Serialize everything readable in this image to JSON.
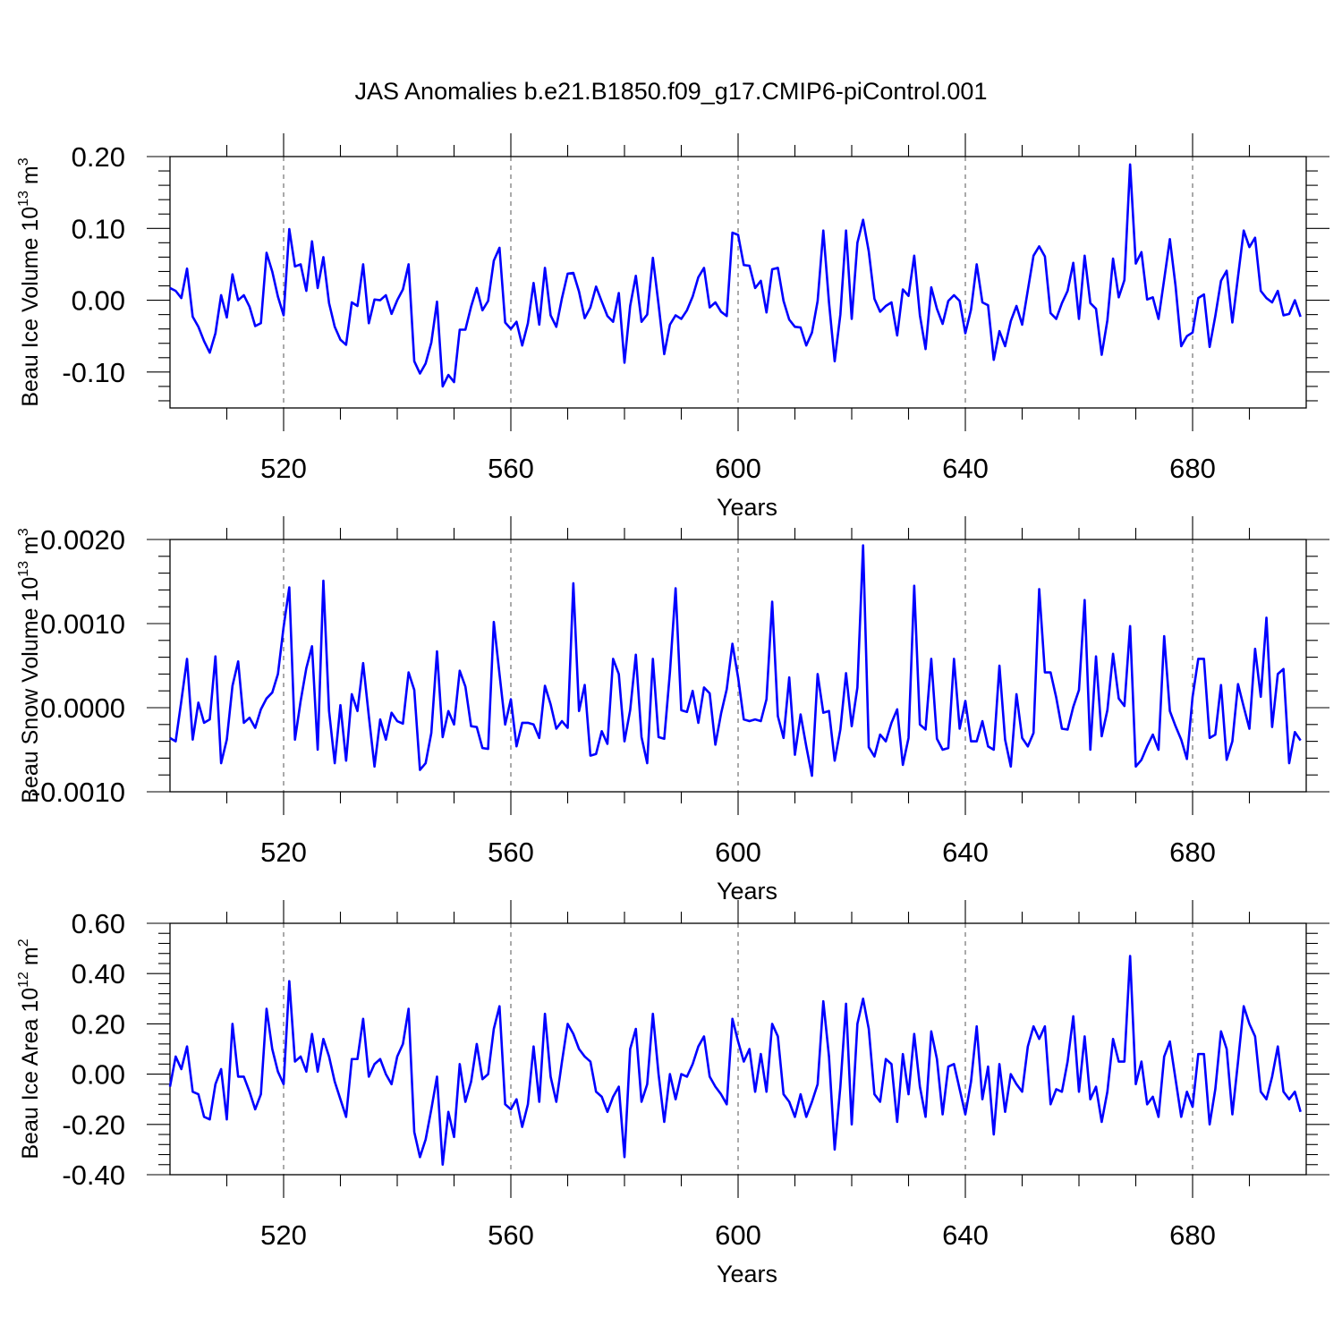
{
  "chart_data": {
    "title": "JAS Anomalies b.e21.B1850.f09_g17.CMIP6-piControl.001",
    "panels": [
      {
        "type": "line",
        "ylabel": "Beau Ice Volume 10",
        "ylabel_exp": "13",
        "ylabel_unit": " m",
        "ylabel_unit_exp": "3",
        "xlabel": "Years",
        "xlim": [
          500,
          700
        ],
        "ylim": [
          -0.15,
          0.2
        ],
        "yticks": [
          -0.1,
          0.0,
          0.1,
          0.2
        ],
        "ytick_labels": [
          "-0.10",
          "0.00",
          "0.10",
          "0.20"
        ],
        "xticks": [
          520,
          560,
          600,
          640,
          680
        ],
        "xtick_labels": [
          "520",
          "560",
          "600",
          "640",
          "680"
        ],
        "grid_x": [
          520,
          560,
          600,
          640,
          680
        ],
        "color": "#0000ff",
        "x_start": 500,
        "values": [
          0.017,
          0.013,
          0.003,
          0.044,
          -0.023,
          -0.037,
          -0.057,
          -0.073,
          -0.046,
          0.007,
          -0.024,
          0.036,
          0.0,
          0.007,
          -0.009,
          -0.036,
          -0.032,
          0.066,
          0.04,
          0.005,
          -0.021,
          0.099,
          0.047,
          0.05,
          0.013,
          0.082,
          0.017,
          0.06,
          -0.004,
          -0.037,
          -0.055,
          -0.062,
          -0.003,
          -0.008,
          0.05,
          -0.032,
          0.001,
          0.0,
          0.007,
          -0.019,
          0.0,
          0.015,
          0.05,
          -0.085,
          -0.102,
          -0.088,
          -0.059,
          -0.002,
          -0.12,
          -0.104,
          -0.114,
          -0.041,
          -0.041,
          -0.009,
          0.017,
          -0.014,
          -0.001,
          0.055,
          0.073,
          -0.031,
          -0.04,
          -0.03,
          -0.063,
          -0.032,
          0.024,
          -0.034,
          0.045,
          -0.021,
          -0.037,
          0.003,
          0.037,
          0.038,
          0.012,
          -0.025,
          -0.01,
          0.019,
          -0.002,
          -0.022,
          -0.03,
          0.01,
          -0.087,
          -0.008,
          0.034,
          -0.03,
          -0.02,
          0.059,
          -0.006,
          -0.075,
          -0.034,
          -0.021,
          -0.026,
          -0.014,
          0.005,
          0.032,
          0.045,
          -0.01,
          -0.003,
          -0.016,
          -0.022,
          0.094,
          0.091,
          0.049,
          0.048,
          0.017,
          0.027,
          -0.017,
          0.043,
          0.045,
          -0.001,
          -0.027,
          -0.037,
          -0.038,
          -0.063,
          -0.045,
          -0.001,
          0.097,
          -0.003,
          -0.085,
          -0.02,
          0.097,
          -0.026,
          0.08,
          0.112,
          0.068,
          0.002,
          -0.016,
          -0.008,
          -0.003,
          -0.049,
          0.015,
          0.006,
          0.062,
          -0.021,
          -0.068,
          0.018,
          -0.012,
          -0.033,
          -0.001,
          0.007,
          -0.001,
          -0.046,
          -0.013,
          0.05,
          -0.003,
          -0.007,
          -0.083,
          -0.043,
          -0.064,
          -0.029,
          -0.008,
          -0.034,
          0.014,
          0.062,
          0.075,
          0.061,
          -0.018,
          -0.026,
          -0.004,
          0.013,
          0.052,
          -0.026,
          0.062,
          -0.004,
          -0.012,
          -0.076,
          -0.028,
          0.058,
          0.004,
          0.028,
          0.189,
          0.051,
          0.067,
          0.001,
          0.004,
          -0.026,
          0.029,
          0.085,
          0.02,
          -0.064,
          -0.05,
          -0.045,
          0.003,
          0.008,
          -0.065,
          -0.022,
          0.027,
          0.041,
          -0.031,
          0.033,
          0.097,
          0.074,
          0.087,
          0.013,
          0.003,
          -0.003,
          0.013,
          -0.021,
          -0.019,
          0.0,
          -0.023
        ]
      },
      {
        "type": "line",
        "ylabel": "Beau Snow Volume 10",
        "ylabel_exp": "13",
        "ylabel_unit": " m",
        "ylabel_unit_exp": "3",
        "xlabel": "Years",
        "xlim": [
          500,
          700
        ],
        "ylim": [
          -0.001,
          0.002
        ],
        "yticks": [
          -0.001,
          0.0,
          0.001,
          0.002
        ],
        "ytick_labels": [
          "-0.0010",
          "0.0000",
          "0.0010",
          "0.0020"
        ],
        "xticks": [
          520,
          560,
          600,
          640,
          680
        ],
        "xtick_labels": [
          "520",
          "560",
          "600",
          "640",
          "680"
        ],
        "grid_x": [
          520,
          560,
          600,
          640,
          680
        ],
        "color": "#0000ff",
        "x_start": 500,
        "values": [
          -0.00036,
          -0.0004,
          8e-05,
          0.00058,
          -0.00038,
          6e-05,
          -0.00018,
          -0.00014,
          0.00061,
          -0.00066,
          -0.00038,
          0.00026,
          0.00055,
          -0.00018,
          -0.00012,
          -0.00024,
          -2e-05,
          0.00011,
          0.00018,
          0.0004,
          0.00096,
          0.00143,
          -0.00038,
          8e-05,
          0.00047,
          0.00073,
          -0.0005,
          0.00151,
          -4e-05,
          -0.00066,
          3e-05,
          -0.00063,
          0.00016,
          -4e-05,
          0.00053,
          -0.0001,
          -0.0007,
          -0.00014,
          -0.00038,
          -6e-05,
          -0.00016,
          -0.00019,
          0.00042,
          0.00021,
          -0.00074,
          -0.00066,
          -0.0003,
          0.00067,
          -0.00035,
          -4e-05,
          -0.0002,
          0.00044,
          0.00025,
          -0.00022,
          -0.00023,
          -0.00048,
          -0.00049,
          0.00102,
          0.0004,
          -0.0002,
          0.0001,
          -0.00046,
          -0.00018,
          -0.00018,
          -0.0002,
          -0.00036,
          0.00026,
          4e-05,
          -0.00025,
          -0.00016,
          -0.00024,
          0.00148,
          -4e-05,
          0.00027,
          -0.00057,
          -0.00055,
          -0.00028,
          -0.00043,
          0.00058,
          0.0004,
          -0.0004,
          -3e-05,
          0.00063,
          -0.00035,
          -0.00066,
          0.00058,
          -0.00035,
          -0.00037,
          0.00042,
          0.00142,
          -3e-05,
          -5e-05,
          0.0002,
          -0.00018,
          0.00024,
          0.00017,
          -0.00044,
          -7e-05,
          0.00022,
          0.00076,
          0.00036,
          -0.00014,
          -0.00016,
          -0.00014,
          -0.00016,
          0.0001,
          0.00126,
          -0.0001,
          -0.00036,
          0.00036,
          -0.00056,
          -8e-05,
          -0.00046,
          -0.00081,
          0.0004,
          -6e-05,
          -4e-05,
          -0.00063,
          -0.00026,
          0.00041,
          -0.00022,
          0.00024,
          0.00193,
          -0.00047,
          -0.00058,
          -0.00032,
          -0.0004,
          -0.00018,
          -2e-05,
          -0.00068,
          -0.00036,
          0.00145,
          -0.0002,
          -0.00026,
          0.00058,
          -0.00037,
          -0.0005,
          -0.00048,
          0.00058,
          -0.00025,
          8e-05,
          -0.0004,
          -0.0004,
          -0.00016,
          -0.00046,
          -0.0005,
          0.0005,
          -0.00038,
          -0.0007,
          0.00016,
          -0.00036,
          -0.00046,
          -0.0003,
          0.00141,
          0.00042,
          0.00042,
          0.00012,
          -0.00025,
          -0.00026,
          1e-05,
          0.00021,
          0.00128,
          -0.0005,
          0.00061,
          -0.00034,
          -3e-05,
          0.00064,
          0.00011,
          2e-05,
          0.00097,
          -0.0007,
          -0.00062,
          -0.00046,
          -0.00032,
          -0.0005,
          0.00085,
          -4e-05,
          -0.00022,
          -0.00038,
          -0.00061,
          0.00013,
          0.00058,
          0.00058,
          -0.00036,
          -0.00032,
          0.00027,
          -0.00062,
          -0.0004,
          0.00028,
          1e-05,
          -0.00025,
          0.0007,
          0.00013,
          0.00107,
          -0.00023,
          0.0004,
          0.00046,
          -0.00066,
          -0.00029,
          -0.00039
        ]
      },
      {
        "type": "line",
        "ylabel": "Beau Ice Area 10",
        "ylabel_exp": "12",
        "ylabel_unit": " m",
        "ylabel_unit_exp": "2",
        "xlabel": "Years",
        "xlim": [
          500,
          700
        ],
        "ylim": [
          -0.4,
          0.6
        ],
        "yticks": [
          -0.4,
          -0.2,
          0.0,
          0.2,
          0.4,
          0.6
        ],
        "ytick_labels": [
          "-0.40",
          "-0.20",
          "0.00",
          "0.20",
          "0.40",
          "0.60"
        ],
        "xticks": [
          520,
          560,
          600,
          640,
          680
        ],
        "xtick_labels": [
          "520",
          "560",
          "600",
          "640",
          "680"
        ],
        "grid_x": [
          520,
          560,
          600,
          640,
          680
        ],
        "color": "#0000ff",
        "x_start": 500,
        "values": [
          -0.05,
          0.07,
          0.02,
          0.11,
          -0.07,
          -0.08,
          -0.17,
          -0.18,
          -0.04,
          0.02,
          -0.18,
          0.2,
          -0.01,
          -0.01,
          -0.07,
          -0.14,
          -0.08,
          0.26,
          0.1,
          0.01,
          -0.04,
          0.37,
          0.05,
          0.07,
          0.01,
          0.16,
          0.01,
          0.14,
          0.07,
          -0.03,
          -0.1,
          -0.17,
          0.06,
          0.06,
          0.22,
          -0.01,
          0.04,
          0.06,
          0.0,
          -0.04,
          0.07,
          0.12,
          0.26,
          -0.23,
          -0.33,
          -0.26,
          -0.14,
          -0.01,
          -0.36,
          -0.15,
          -0.25,
          0.04,
          -0.11,
          -0.03,
          0.12,
          -0.02,
          0.0,
          0.18,
          0.27,
          -0.12,
          -0.14,
          -0.1,
          -0.21,
          -0.12,
          0.11,
          -0.11,
          0.24,
          -0.01,
          -0.11,
          0.05,
          0.2,
          0.16,
          0.1,
          0.07,
          0.05,
          -0.07,
          -0.09,
          -0.15,
          -0.09,
          -0.05,
          -0.33,
          0.1,
          0.18,
          -0.11,
          -0.04,
          0.24,
          0.0,
          -0.19,
          0.0,
          -0.1,
          0.0,
          -0.01,
          0.04,
          0.11,
          0.15,
          -0.01,
          -0.05,
          -0.08,
          -0.12,
          0.22,
          0.13,
          0.05,
          0.1,
          -0.07,
          0.08,
          -0.07,
          0.2,
          0.15,
          -0.08,
          -0.11,
          -0.17,
          -0.08,
          -0.17,
          -0.11,
          -0.04,
          0.29,
          0.07,
          -0.3,
          -0.05,
          0.28,
          -0.2,
          0.2,
          0.3,
          0.18,
          -0.08,
          -0.11,
          0.06,
          0.04,
          -0.19,
          0.08,
          -0.08,
          0.16,
          -0.05,
          -0.17,
          0.17,
          0.06,
          -0.16,
          0.03,
          0.04,
          -0.06,
          -0.16,
          -0.03,
          0.19,
          -0.1,
          0.03,
          -0.24,
          0.04,
          -0.15,
          0.0,
          -0.04,
          -0.07,
          0.11,
          0.19,
          0.14,
          0.19,
          -0.12,
          -0.06,
          -0.07,
          0.05,
          0.23,
          -0.07,
          0.15,
          -0.1,
          -0.05,
          -0.19,
          -0.07,
          0.14,
          0.05,
          0.05,
          0.47,
          -0.04,
          0.05,
          -0.12,
          -0.09,
          -0.17,
          0.07,
          0.13,
          -0.02,
          -0.17,
          -0.07,
          -0.13,
          0.08,
          0.08,
          -0.2,
          -0.06,
          0.17,
          0.1,
          -0.16,
          0.05,
          0.27,
          0.2,
          0.15,
          -0.07,
          -0.1,
          -0.01,
          0.11,
          -0.07,
          -0.1,
          -0.07,
          -0.15
        ]
      }
    ]
  }
}
